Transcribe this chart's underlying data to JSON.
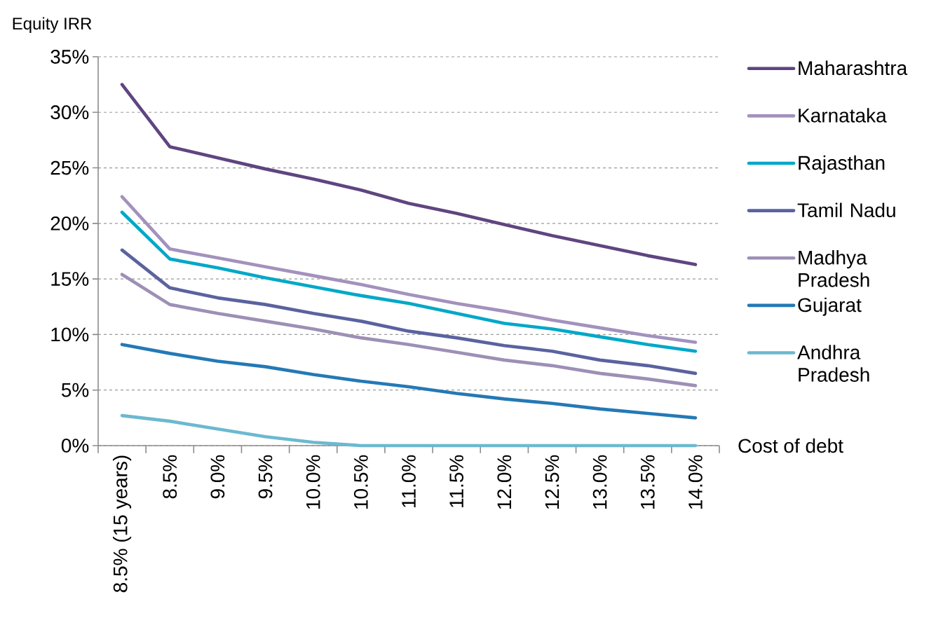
{
  "chart_data": {
    "type": "line",
    "xlabel": "Cost of debt",
    "ylabel": "Equity IRR",
    "categories": [
      "8.5% (15 years)",
      "8.5%",
      "9.0%",
      "9.5%",
      "10.0%",
      "10.5%",
      "11.0%",
      "11.5%",
      "12.0%",
      "12.5%",
      "13.0%",
      "13.5%",
      "14.0%"
    ],
    "series": [
      {
        "name": "Maharashtra",
        "color": "#5f4580",
        "values": [
          32.5,
          26.9,
          25.9,
          24.9,
          24.0,
          23.0,
          21.8,
          20.9,
          19.9,
          18.9,
          18.0,
          17.1,
          16.3
        ]
      },
      {
        "name": "Karnataka",
        "color": "#a391bd",
        "values": [
          22.4,
          17.7,
          16.9,
          16.1,
          15.3,
          14.5,
          13.6,
          12.8,
          12.1,
          11.3,
          10.6,
          9.9,
          9.3
        ]
      },
      {
        "name": "Rajasthan",
        "color": "#00a8c8",
        "values": [
          21.0,
          16.8,
          16.0,
          15.1,
          14.3,
          13.5,
          12.8,
          11.9,
          11.0,
          10.5,
          9.8,
          9.1,
          8.5
        ]
      },
      {
        "name": "Tamil Nadu",
        "color": "#5a62a0",
        "values": [
          17.6,
          14.2,
          13.3,
          12.7,
          11.9,
          11.2,
          10.3,
          9.7,
          9.0,
          8.5,
          7.7,
          7.2,
          6.5
        ]
      },
      {
        "name": "Madhya Pradesh",
        "color": "#9d8fb5",
        "values": [
          15.4,
          12.7,
          11.9,
          11.2,
          10.5,
          9.7,
          9.1,
          8.4,
          7.7,
          7.2,
          6.5,
          6.0,
          5.4
        ]
      },
      {
        "name": "Gujarat",
        "color": "#2479b5",
        "values": [
          9.1,
          8.3,
          7.6,
          7.1,
          6.4,
          5.8,
          5.3,
          4.7,
          4.2,
          3.8,
          3.3,
          2.9,
          2.5
        ]
      },
      {
        "name": "Andhra Pradesh",
        "color": "#6bb9d0",
        "values": [
          2.7,
          2.2,
          1.5,
          0.8,
          0.3,
          0,
          0,
          0,
          0,
          0,
          0,
          0,
          0
        ]
      }
    ],
    "ylim": [
      0,
      35
    ],
    "yticks": [
      {
        "value": 0,
        "label": "0%"
      },
      {
        "value": 5,
        "label": "5%"
      },
      {
        "value": 10,
        "label": "10%"
      },
      {
        "value": 15,
        "label": "15%"
      },
      {
        "value": 20,
        "label": "20%"
      },
      {
        "value": 25,
        "label": "25%"
      },
      {
        "value": 30,
        "label": "30%"
      },
      {
        "value": 35,
        "label": "35%"
      }
    ],
    "grid": "y",
    "legend": "right",
    "marker": "none",
    "line_style": "solid"
  }
}
